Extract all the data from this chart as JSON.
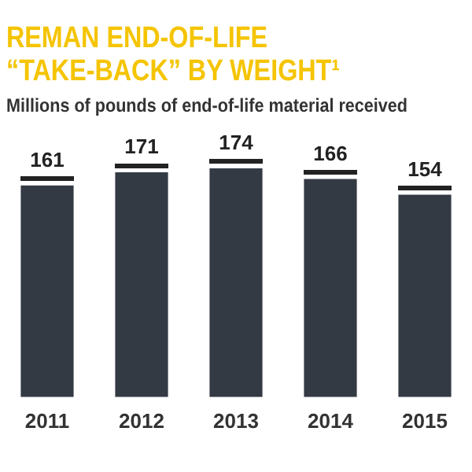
{
  "chart_data": {
    "type": "bar",
    "title": "REMAN END-OF-LIFE “TAKE-BACK” BY WEIGHT¹",
    "subtitle": "Millions of pounds of end-of-life material received",
    "categories": [
      "2011",
      "2012",
      "2013",
      "2014",
      "2015"
    ],
    "values": [
      161,
      171,
      174,
      166,
      154
    ],
    "color": "#343a44",
    "data_labels": true,
    "grid": false,
    "legend": false
  }
}
